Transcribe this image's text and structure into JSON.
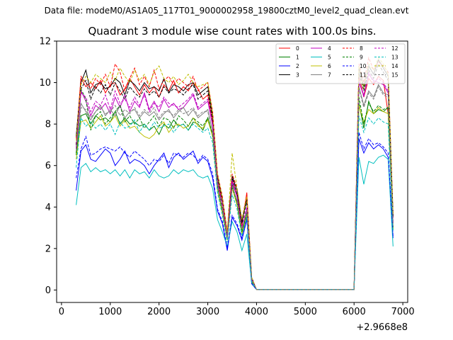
{
  "figure": {
    "suptitle": "Data file: modeM0/AS1A05_117T01_9000002958_19800cztM0_level2_quad_clean.evt"
  },
  "chart_data": {
    "type": "line",
    "title": "Quadrant 3 module wise count rates with 100.0s bins.",
    "xlabel": "",
    "ylabel": "",
    "x_offset_label": "+2.9668e8",
    "xlim": [
      -100,
      7100
    ],
    "ylim": [
      -0.6,
      12
    ],
    "xticks": [
      0,
      1000,
      2000,
      3000,
      4000,
      5000,
      6000,
      7000
    ],
    "yticks": [
      0,
      2,
      4,
      6,
      8,
      10,
      12
    ],
    "grid": false,
    "legend": {
      "placement": "top-right",
      "columns": 4
    },
    "x": [
      300,
      400,
      500,
      600,
      700,
      800,
      900,
      1000,
      1100,
      1200,
      1300,
      1400,
      1500,
      1600,
      1700,
      1800,
      1900,
      2000,
      2100,
      2200,
      2300,
      2400,
      2500,
      2600,
      2700,
      2800,
      2900,
      3000,
      3100,
      3200,
      3300,
      3400,
      3500,
      3600,
      3700,
      3800,
      3900,
      4000,
      4100,
      4200,
      4300,
      4400,
      4500,
      4600,
      4700,
      4800,
      4900,
      5000,
      5100,
      5200,
      5300,
      5400,
      5500,
      5600,
      5700,
      5800,
      5900,
      6000,
      6100,
      6200,
      6300,
      6400,
      6500,
      6600,
      6700,
      6800
    ],
    "series": [
      {
        "name": "0",
        "color": "#ff0000",
        "dash": "solid",
        "values": [
          7.3,
          10.2,
          9.8,
          10.0,
          9.7,
          10.1,
          9.5,
          9.9,
          10.0,
          9.4,
          9.7,
          10.2,
          9.8,
          9.4,
          9.9,
          9.5,
          9.8,
          9.3,
          9.9,
          9.6,
          10.1,
          9.5,
          9.8,
          9.6,
          10.0,
          9.7,
          9.2,
          9.4,
          8.1,
          5.2,
          4.3,
          2.7,
          5.3,
          4.6,
          3.1,
          4.7,
          0.5,
          0.02,
          0.02,
          0.02,
          0.02,
          0.02,
          0.02,
          0.02,
          0.02,
          0.02,
          0.02,
          0.02,
          0.02,
          0.02,
          0.02,
          0.02,
          0.02,
          0.02,
          0.02,
          0.02,
          0.02,
          0.02,
          10.3,
          9.3,
          10.2,
          9.9,
          10.3,
          10.1,
          8.5,
          3.5
        ]
      },
      {
        "name": "1",
        "color": "#008000",
        "dash": "solid",
        "values": [
          6.5,
          8.4,
          8.5,
          8.0,
          8.4,
          8.2,
          8.3,
          8.1,
          8.6,
          8.0,
          8.3,
          8.0,
          8.1,
          7.9,
          8.0,
          7.7,
          7.9,
          7.5,
          8.0,
          7.8,
          8.2,
          7.9,
          8.0,
          7.7,
          8.1,
          8.0,
          7.7,
          8.3,
          7.4,
          5.0,
          3.8,
          2.4,
          5.1,
          4.2,
          2.7,
          3.8,
          0.4,
          0.02,
          0.02,
          0.02,
          0.02,
          0.02,
          0.02,
          0.02,
          0.02,
          0.02,
          0.02,
          0.02,
          0.02,
          0.02,
          0.02,
          0.02,
          0.02,
          0.02,
          0.02,
          0.02,
          0.02,
          0.02,
          9.0,
          7.8,
          9.1,
          8.5,
          8.7,
          8.6,
          8.8,
          2.9
        ]
      },
      {
        "name": "2",
        "color": "#0000ff",
        "dash": "solid",
        "values": [
          4.8,
          6.7,
          7.0,
          6.3,
          6.2,
          6.5,
          6.8,
          6.6,
          6.0,
          6.3,
          6.7,
          6.1,
          6.3,
          6.2,
          6.0,
          5.6,
          6.0,
          6.3,
          6.6,
          5.9,
          6.4,
          6.6,
          6.3,
          6.5,
          6.7,
          6.1,
          6.4,
          6.2,
          5.4,
          3.8,
          3.2,
          1.9,
          3.5,
          3.1,
          2.4,
          3.4,
          0.3,
          0.02,
          0.02,
          0.02,
          0.02,
          0.02,
          0.02,
          0.02,
          0.02,
          0.02,
          0.02,
          0.02,
          0.02,
          0.02,
          0.02,
          0.02,
          0.02,
          0.02,
          0.02,
          0.02,
          0.02,
          0.02,
          7.3,
          6.6,
          7.1,
          6.8,
          7.0,
          6.8,
          6.4,
          2.5
        ]
      },
      {
        "name": "3",
        "color": "#000000",
        "dash": "solid",
        "values": [
          7.4,
          10.0,
          10.6,
          9.5,
          9.9,
          10.0,
          9.7,
          9.8,
          10.2,
          10.0,
          9.4,
          10.1,
          9.9,
          9.6,
          10.0,
          9.7,
          9.8,
          9.6,
          10.2,
          9.5,
          9.9,
          9.8,
          9.6,
          9.9,
          10.0,
          9.4,
          9.6,
          9.8,
          8.4,
          5.5,
          4.4,
          2.7,
          5.5,
          4.8,
          3.3,
          4.4,
          0.6,
          0.02,
          0.02,
          0.02,
          0.02,
          0.02,
          0.02,
          0.02,
          0.02,
          0.02,
          0.02,
          0.02,
          0.02,
          0.02,
          0.02,
          0.02,
          0.02,
          0.02,
          0.02,
          0.02,
          0.02,
          0.02,
          10.7,
          9.8,
          10.8,
          10.4,
          11.1,
          10.7,
          10.3,
          3.6
        ]
      },
      {
        "name": "4",
        "color": "#bf00bf",
        "dash": "solid",
        "values": [
          6.9,
          9.6,
          9.1,
          8.4,
          8.9,
          8.7,
          9.0,
          8.5,
          9.3,
          8.8,
          9.4,
          8.6,
          9.1,
          8.8,
          9.5,
          8.7,
          9.1,
          8.6,
          9.2,
          8.8,
          9.0,
          8.7,
          8.8,
          9.1,
          9.4,
          8.7,
          8.9,
          9.1,
          7.9,
          5.2,
          4.0,
          2.6,
          5.2,
          4.5,
          2.9,
          3.9,
          0.5,
          0.02,
          0.02,
          0.02,
          0.02,
          0.02,
          0.02,
          0.02,
          0.02,
          0.02,
          0.02,
          0.02,
          0.02,
          0.02,
          0.02,
          0.02,
          0.02,
          0.02,
          0.02,
          0.02,
          0.02,
          0.02,
          10.0,
          9.4,
          10.4,
          10.1,
          10.0,
          9.9,
          9.5,
          3.2
        ]
      },
      {
        "name": "5",
        "color": "#00bfbf",
        "dash": "solid",
        "values": [
          4.1,
          5.9,
          6.1,
          5.7,
          5.9,
          5.7,
          5.8,
          5.6,
          5.8,
          5.5,
          5.8,
          5.4,
          5.8,
          5.6,
          5.7,
          5.4,
          5.8,
          5.5,
          5.4,
          5.5,
          5.8,
          5.6,
          5.8,
          5.7,
          5.8,
          5.5,
          5.4,
          5.5,
          4.9,
          3.4,
          2.8,
          2.1,
          3.3,
          2.8,
          1.9,
          2.7,
          0.3,
          0.02,
          0.02,
          0.02,
          0.02,
          0.02,
          0.02,
          0.02,
          0.02,
          0.02,
          0.02,
          0.02,
          0.02,
          0.02,
          0.02,
          0.02,
          0.02,
          0.02,
          0.02,
          0.02,
          0.02,
          0.02,
          6.4,
          5.1,
          6.2,
          6.1,
          6.4,
          6.5,
          6.3,
          2.1
        ]
      },
      {
        "name": "6",
        "color": "#bfbf00",
        "dash": "solid",
        "values": [
          6.3,
          8.1,
          8.2,
          7.8,
          8.1,
          8.4,
          7.9,
          8.1,
          8.4,
          7.9,
          8.2,
          7.8,
          7.9,
          7.6,
          7.4,
          7.3,
          7.5,
          7.9,
          8.1,
          7.6,
          7.9,
          8.0,
          7.8,
          7.9,
          8.3,
          7.9,
          7.8,
          8.2,
          7.4,
          4.8,
          3.7,
          2.4,
          4.9,
          4.1,
          2.7,
          3.6,
          0.4,
          0.02,
          0.02,
          0.02,
          0.02,
          0.02,
          0.02,
          0.02,
          0.02,
          0.02,
          0.02,
          0.02,
          0.02,
          0.02,
          0.02,
          0.02,
          0.02,
          0.02,
          0.02,
          0.02,
          0.02,
          0.02,
          8.9,
          8.1,
          8.7,
          8.5,
          8.8,
          8.6,
          8.5,
          2.9
        ]
      },
      {
        "name": "7",
        "color": "#808080",
        "dash": "solid",
        "values": [
          6.8,
          9.0,
          8.6,
          8.2,
          8.6,
          8.9,
          8.4,
          8.7,
          8.4,
          8.9,
          8.3,
          8.6,
          8.7,
          8.3,
          8.6,
          8.4,
          8.6,
          8.2,
          8.5,
          8.7,
          8.3,
          8.6,
          8.8,
          8.4,
          8.7,
          8.3,
          8.5,
          8.7,
          7.6,
          5.1,
          3.9,
          2.6,
          5.0,
          4.3,
          2.9,
          3.8,
          0.5,
          0.02,
          0.02,
          0.02,
          0.02,
          0.02,
          0.02,
          0.02,
          0.02,
          0.02,
          0.02,
          0.02,
          0.02,
          0.02,
          0.02,
          0.02,
          0.02,
          0.02,
          0.02,
          0.02,
          0.02,
          0.02,
          9.8,
          8.9,
          9.6,
          9.3,
          9.9,
          9.5,
          9.4,
          3.2
        ]
      },
      {
        "name": "8",
        "color": "#ff0000",
        "dash": "dashed",
        "values": [
          7.0,
          10.3,
          10.0,
          9.7,
          10.2,
          9.9,
          10.4,
          9.8,
          10.9,
          10.5,
          9.6,
          10.2,
          10.7,
          9.9,
          10.3,
          9.8,
          10.6,
          9.7,
          10.1,
          10.3,
          9.9,
          10.2,
          10.0,
          9.8,
          10.3,
          9.6,
          9.8,
          10.0,
          8.6,
          5.6,
          4.5,
          2.8,
          5.6,
          4.9,
          3.4,
          4.6,
          0.6,
          0.02,
          0.02,
          0.02,
          0.02,
          0.02,
          0.02,
          0.02,
          0.02,
          0.02,
          0.02,
          0.02,
          0.02,
          0.02,
          0.02,
          0.02,
          0.02,
          0.02,
          0.02,
          0.02,
          0.02,
          0.02,
          10.9,
          10.0,
          11.2,
          10.6,
          11.0,
          10.8,
          10.5,
          3.7
        ]
      },
      {
        "name": "9",
        "color": "#008000",
        "dash": "dashed",
        "values": [
          6.6,
          9.7,
          9.2,
          7.7,
          8.4,
          8.6,
          8.0,
          8.3,
          8.6,
          8.9,
          8.1,
          8.4,
          8.0,
          8.3,
          7.8,
          8.1,
          8.4,
          7.9,
          8.3,
          8.2,
          7.8,
          8.4,
          8.2,
          7.9,
          8.3,
          8.1,
          7.9,
          8.3,
          7.5,
          5.0,
          3.9,
          2.5,
          5.0,
          4.2,
          2.8,
          3.7,
          0.4,
          0.02,
          0.02,
          0.02,
          0.02,
          0.02,
          0.02,
          0.02,
          0.02,
          0.02,
          0.02,
          0.02,
          0.02,
          0.02,
          0.02,
          0.02,
          0.02,
          0.02,
          0.02,
          0.02,
          0.02,
          0.02,
          9.3,
          8.0,
          9.0,
          8.6,
          8.9,
          8.7,
          8.8,
          3.0
        ]
      },
      {
        "name": "10",
        "color": "#0000ff",
        "dash": "dashed",
        "values": [
          5.4,
          6.8,
          7.4,
          6.5,
          6.6,
          6.8,
          6.9,
          6.8,
          6.7,
          6.9,
          6.6,
          6.4,
          6.7,
          6.5,
          6.3,
          6.0,
          6.3,
          6.2,
          6.5,
          6.1,
          6.6,
          6.5,
          6.4,
          6.6,
          6.5,
          6.2,
          6.5,
          6.3,
          5.6,
          3.9,
          3.3,
          2.0,
          3.6,
          3.2,
          2.5,
          3.5,
          0.3,
          0.02,
          0.02,
          0.02,
          0.02,
          0.02,
          0.02,
          0.02,
          0.02,
          0.02,
          0.02,
          0.02,
          0.02,
          0.02,
          0.02,
          0.02,
          0.02,
          0.02,
          0.02,
          0.02,
          0.02,
          0.02,
          7.6,
          6.8,
          7.3,
          7.0,
          7.1,
          6.9,
          6.6,
          2.6
        ]
      },
      {
        "name": "11",
        "color": "#000000",
        "dash": "dashed",
        "values": [
          7.0,
          9.7,
          10.1,
          9.2,
          9.8,
          9.5,
          9.9,
          9.4,
          10.0,
          9.6,
          9.2,
          9.8,
          9.5,
          9.3,
          9.7,
          9.4,
          9.6,
          9.3,
          9.8,
          9.5,
          9.7,
          9.6,
          9.4,
          9.7,
          9.9,
          9.2,
          9.4,
          9.6,
          8.2,
          5.4,
          4.3,
          2.6,
          5.4,
          4.6,
          3.2,
          4.3,
          0.5,
          0.02,
          0.02,
          0.02,
          0.02,
          0.02,
          0.02,
          0.02,
          0.02,
          0.02,
          0.02,
          0.02,
          0.02,
          0.02,
          0.02,
          0.02,
          0.02,
          0.02,
          0.02,
          0.02,
          0.02,
          0.02,
          10.5,
          9.6,
          10.6,
          10.2,
          10.9,
          10.5,
          10.1,
          3.5
        ]
      },
      {
        "name": "12",
        "color": "#bf00bf",
        "dash": "dashed",
        "values": [
          6.8,
          9.5,
          9.3,
          8.6,
          9.1,
          8.9,
          9.4,
          8.7,
          9.6,
          9.0,
          9.2,
          8.8,
          9.3,
          8.9,
          9.4,
          8.6,
          9.0,
          8.8,
          9.3,
          9.0,
          8.9,
          8.8,
          9.0,
          9.2,
          9.5,
          8.8,
          9.0,
          9.2,
          8.0,
          5.2,
          4.1,
          2.6,
          5.3,
          4.5,
          3.0,
          4.0,
          0.5,
          0.02,
          0.02,
          0.02,
          0.02,
          0.02,
          0.02,
          0.02,
          0.02,
          0.02,
          0.02,
          0.02,
          0.02,
          0.02,
          0.02,
          0.02,
          0.02,
          0.02,
          0.02,
          0.02,
          0.02,
          0.02,
          10.1,
          9.3,
          10.5,
          10.0,
          10.2,
          10.0,
          9.6,
          3.3
        ]
      },
      {
        "name": "13",
        "color": "#00bfbf",
        "dash": "dashed",
        "values": [
          5.9,
          8.3,
          7.9,
          8.1,
          7.8,
          8.0,
          7.7,
          8.0,
          7.5,
          8.1,
          7.8,
          7.9,
          8.2,
          7.6,
          8.0,
          7.7,
          8.1,
          7.8,
          7.9,
          8.0,
          7.6,
          7.9,
          8.0,
          7.7,
          8.0,
          7.8,
          7.6,
          7.8,
          7.1,
          4.7,
          3.6,
          2.3,
          4.6,
          3.9,
          2.6,
          3.5,
          0.4,
          0.02,
          0.02,
          0.02,
          0.02,
          0.02,
          0.02,
          0.02,
          0.02,
          0.02,
          0.02,
          0.02,
          0.02,
          0.02,
          0.02,
          0.02,
          0.02,
          0.02,
          0.02,
          0.02,
          0.02,
          0.02,
          8.4,
          7.6,
          8.3,
          8.0,
          8.3,
          8.1,
          8.0,
          2.8
        ]
      },
      {
        "name": "14",
        "color": "#bfbf00",
        "dash": "dashed",
        "values": [
          7.2,
          9.9,
          10.3,
          10.0,
          10.4,
          10.2,
          10.0,
          10.5,
          10.1,
          10.7,
          10.3,
          10.0,
          10.6,
          10.1,
          10.4,
          9.9,
          10.5,
          10.8,
          10.2,
          10.0,
          10.3,
          9.9,
          10.1,
          10.4,
          10.0,
          9.8,
          9.9,
          10.0,
          8.5,
          5.6,
          4.4,
          2.8,
          6.6,
          4.9,
          3.4,
          4.5,
          0.6,
          0.02,
          0.02,
          0.02,
          0.02,
          0.02,
          0.02,
          0.02,
          0.02,
          0.02,
          0.02,
          0.02,
          0.02,
          0.02,
          0.02,
          0.02,
          0.02,
          0.02,
          0.02,
          0.02,
          0.02,
          0.02,
          10.8,
          9.7,
          10.9,
          10.6,
          11.2,
          10.9,
          10.4,
          3.6
        ]
      },
      {
        "name": "15",
        "color": "#808080",
        "dash": "dashed",
        "values": [
          6.7,
          8.8,
          8.7,
          8.3,
          8.6,
          8.8,
          8.5,
          8.6,
          8.9,
          8.4,
          8.7,
          8.5,
          8.8,
          8.4,
          8.7,
          8.5,
          8.8,
          8.3,
          8.6,
          8.6,
          8.4,
          8.7,
          8.5,
          8.6,
          8.8,
          8.4,
          8.6,
          8.6,
          7.6,
          5.0,
          3.9,
          2.5,
          5.0,
          4.3,
          2.9,
          3.8,
          0.5,
          0.02,
          0.02,
          0.02,
          0.02,
          0.02,
          0.02,
          0.02,
          0.02,
          0.02,
          0.02,
          0.02,
          0.02,
          0.02,
          0.02,
          0.02,
          0.02,
          0.02,
          0.02,
          0.02,
          0.02,
          0.02,
          9.7,
          8.8,
          9.5,
          9.2,
          9.8,
          9.4,
          9.3,
          3.1
        ]
      }
    ]
  }
}
